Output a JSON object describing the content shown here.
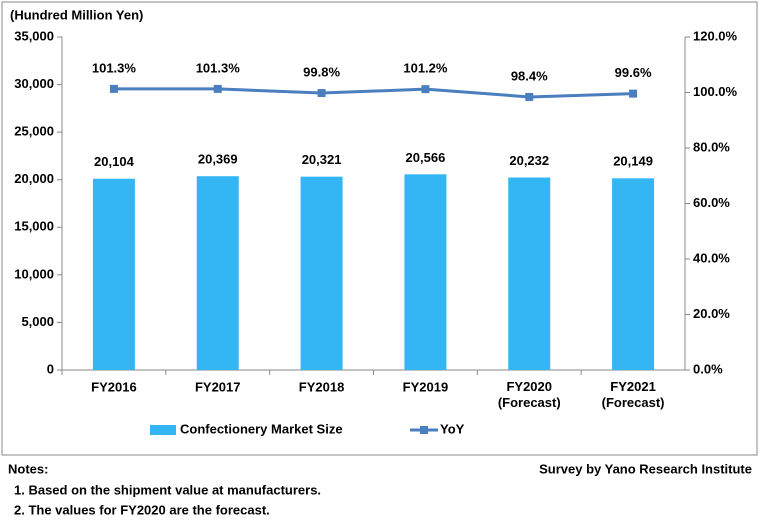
{
  "chart_data": {
    "type": "bar",
    "unit_label": "(Hundred Million Yen)",
    "categories": [
      "FY2016",
      "FY2017",
      "FY2018",
      "FY2019",
      "FY2020\n(Forecast)",
      "FY2021\n(Forecast)"
    ],
    "series": [
      {
        "name": "Confectionery Market Size",
        "type": "bar",
        "color": "#35b6f4",
        "values": [
          20104,
          20369,
          20321,
          20566,
          20232,
          20149
        ],
        "value_labels": [
          "20,104",
          "20,369",
          "20,321",
          "20,566",
          "20,232",
          "20,149"
        ]
      },
      {
        "name": "YoY",
        "type": "line",
        "axis": "y2",
        "color": "#4a7ebf",
        "values": [
          101.3,
          101.3,
          99.8,
          101.2,
          98.4,
          99.6
        ],
        "value_labels": [
          "101.3%",
          "101.3%",
          "99.8%",
          "101.2%",
          "98.4%",
          "99.6%"
        ]
      }
    ],
    "ylim": [
      0,
      35000
    ],
    "yticks": [
      0,
      {
        "value": 5000,
        "label": "5,000"
      },
      {
        "value": 10000,
        "label": "10,000"
      },
      {
        "value": 15000,
        "label": "15,000"
      },
      {
        "value": 20000,
        "label": "20,000"
      },
      {
        "value": 25000,
        "label": "25,000"
      },
      {
        "value": 30000,
        "label": "30,000"
      },
      {
        "value": 35000,
        "label": "35,000"
      }
    ],
    "y2lim": [
      0,
      120
    ],
    "y2ticks": [
      {
        "value": 0,
        "label": "0.0%"
      },
      {
        "value": 20,
        "label": "20.0%"
      },
      {
        "value": 40,
        "label": "40.0%"
      },
      {
        "value": 60,
        "label": "60.0%"
      },
      {
        "value": 80,
        "label": "80.0%"
      },
      {
        "value": 100,
        "label": "100.0%"
      },
      {
        "value": 120,
        "label": "120.0%"
      }
    ],
    "grid": false,
    "legend": "bottom"
  },
  "notes": {
    "title": "Notes:",
    "items": [
      "1. Based on the shipment value at manufacturers.",
      "2. The values for FY2020 are the forecast."
    ]
  },
  "source": "Survey by Yano Research Institute"
}
